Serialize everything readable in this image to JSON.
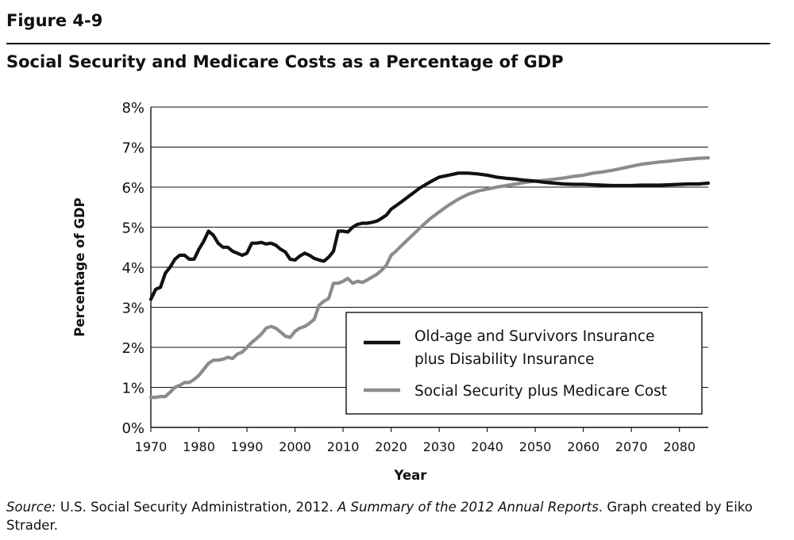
{
  "figure": {
    "label": "Figure 4-9",
    "title": "Social Security and Medicare Costs as a Percentage of GDP"
  },
  "source": {
    "lead": "Source:",
    "text1": " U.S. Social Security Administration, 2012. ",
    "report": "A Summary of the 2012 Annual Reports",
    "text2": ". Graph created by Eiko Strader."
  },
  "colors": {
    "oasdi": "#111111",
    "ssmed": "#8c8c8c",
    "grid": "#111111"
  },
  "chart_data": {
    "type": "line",
    "title": "Social Security and Medicare Costs as a Percentage of GDP",
    "xlabel": "Year",
    "ylabel": "Percentage of GDP",
    "xlim": [
      1970,
      2086
    ],
    "ylim": [
      0,
      8
    ],
    "grid": "horizontal",
    "legend_position": "bottom-right",
    "x_ticks": [
      1970,
      1980,
      1990,
      2000,
      2010,
      2020,
      2030,
      2040,
      2050,
      2060,
      2070,
      2080
    ],
    "x_tick_labels": [
      "1970",
      "1980",
      "1990",
      "2000",
      "2010",
      "2020",
      "2030",
      "2040",
      "2050",
      "2060",
      "2070",
      "2080"
    ],
    "y_ticks": [
      0,
      1,
      2,
      3,
      4,
      5,
      6,
      7,
      8
    ],
    "y_tick_labels": [
      "0%",
      "1%",
      "2%",
      "3%",
      "4%",
      "5%",
      "6%",
      "7%",
      "8%"
    ],
    "series": [
      {
        "name": "Old-age and Survivors Insurance plus Disability Insurance",
        "legend_lines": [
          "Old-age and Survivors Insurance",
          "plus Disability Insurance"
        ],
        "x": [
          1970,
          1971,
          1972,
          1973,
          1974,
          1975,
          1976,
          1977,
          1978,
          1979,
          1980,
          1981,
          1982,
          1983,
          1984,
          1985,
          1986,
          1987,
          1988,
          1989,
          1990,
          1991,
          1992,
          1993,
          1994,
          1995,
          1996,
          1997,
          1998,
          1999,
          2000,
          2001,
          2002,
          2003,
          2004,
          2005,
          2006,
          2007,
          2008,
          2009,
          2010,
          2011,
          2012,
          2013,
          2014,
          2015,
          2016,
          2017,
          2018,
          2019,
          2020,
          2022,
          2024,
          2026,
          2028,
          2030,
          2032,
          2034,
          2036,
          2038,
          2040,
          2042,
          2044,
          2046,
          2048,
          2050,
          2052,
          2054,
          2056,
          2058,
          2060,
          2062,
          2064,
          2066,
          2068,
          2070,
          2072,
          2074,
          2076,
          2078,
          2080,
          2082,
          2084,
          2086
        ],
        "values": [
          3.2,
          3.45,
          3.5,
          3.85,
          4.0,
          4.2,
          4.3,
          4.3,
          4.2,
          4.2,
          4.45,
          4.65,
          4.9,
          4.8,
          4.6,
          4.5,
          4.5,
          4.4,
          4.35,
          4.3,
          4.35,
          4.6,
          4.6,
          4.62,
          4.58,
          4.6,
          4.55,
          4.45,
          4.38,
          4.2,
          4.18,
          4.28,
          4.35,
          4.3,
          4.22,
          4.18,
          4.15,
          4.25,
          4.4,
          4.9,
          4.9,
          4.88,
          5.0,
          5.07,
          5.1,
          5.1,
          5.12,
          5.15,
          5.22,
          5.3,
          5.45,
          5.62,
          5.8,
          5.98,
          6.12,
          6.25,
          6.3,
          6.35,
          6.35,
          6.33,
          6.3,
          6.25,
          6.22,
          6.2,
          6.17,
          6.15,
          6.12,
          6.1,
          6.08,
          6.07,
          6.07,
          6.06,
          6.05,
          6.04,
          6.04,
          6.04,
          6.05,
          6.05,
          6.05,
          6.06,
          6.07,
          6.08,
          6.08,
          6.1
        ]
      },
      {
        "name": "Social Security plus Medicare Cost",
        "legend_lines": [
          "Social Security plus Medicare Cost"
        ],
        "x": [
          1970,
          1971,
          1972,
          1973,
          1974,
          1975,
          1976,
          1977,
          1978,
          1979,
          1980,
          1981,
          1982,
          1983,
          1984,
          1985,
          1986,
          1987,
          1988,
          1989,
          1990,
          1991,
          1992,
          1993,
          1994,
          1995,
          1996,
          1997,
          1998,
          1999,
          2000,
          2001,
          2002,
          2003,
          2004,
          2005,
          2006,
          2007,
          2008,
          2009,
          2010,
          2011,
          2012,
          2013,
          2014,
          2015,
          2016,
          2017,
          2018,
          2019,
          2020,
          2021,
          2022,
          2024,
          2026,
          2028,
          2030,
          2032,
          2034,
          2036,
          2038,
          2040,
          2042,
          2044,
          2046,
          2048,
          2050,
          2052,
          2054,
          2056,
          2058,
          2060,
          2062,
          2064,
          2066,
          2068,
          2070,
          2072,
          2074,
          2076,
          2078,
          2080,
          2082,
          2084,
          2086
        ],
        "values": [
          0.75,
          0.75,
          0.77,
          0.77,
          0.88,
          1.0,
          1.05,
          1.12,
          1.12,
          1.2,
          1.3,
          1.45,
          1.6,
          1.68,
          1.68,
          1.7,
          1.75,
          1.72,
          1.83,
          1.88,
          2.0,
          2.12,
          2.22,
          2.33,
          2.48,
          2.52,
          2.48,
          2.38,
          2.28,
          2.25,
          2.4,
          2.48,
          2.52,
          2.6,
          2.7,
          3.05,
          3.15,
          3.22,
          3.6,
          3.6,
          3.65,
          3.72,
          3.6,
          3.65,
          3.62,
          3.68,
          3.75,
          3.82,
          3.92,
          4.05,
          4.3,
          4.4,
          4.52,
          4.75,
          4.98,
          5.2,
          5.38,
          5.55,
          5.7,
          5.82,
          5.9,
          5.95,
          6.0,
          6.04,
          6.08,
          6.12,
          6.15,
          6.17,
          6.2,
          6.23,
          6.27,
          6.3,
          6.35,
          6.38,
          6.42,
          6.47,
          6.52,
          6.57,
          6.6,
          6.63,
          6.65,
          6.68,
          6.7,
          6.72,
          6.73
        ]
      }
    ]
  }
}
